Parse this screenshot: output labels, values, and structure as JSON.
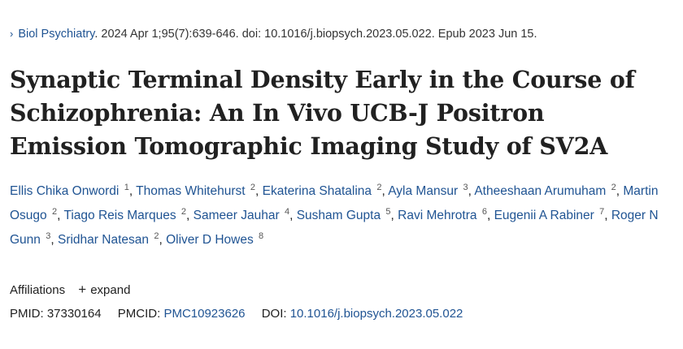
{
  "citation": {
    "arrow": "›",
    "journal": "Biol Psychiatry",
    "details": ". 2024 Apr 1;95(7):639-646. doi: 10.1016/j.biopsych.2023.05.022. Epub 2023 Jun 15."
  },
  "title": "Synaptic Terminal Density Early in the Course of Schizophrenia: An In Vivo UCB-J Positron Emission Tomographic Imaging Study of SV2A",
  "authors": [
    {
      "name": "Ellis Chika Onwordi",
      "sup": "1"
    },
    {
      "name": "Thomas Whitehurst",
      "sup": "2"
    },
    {
      "name": "Ekaterina Shatalina",
      "sup": "2"
    },
    {
      "name": "Ayla Mansur",
      "sup": "3"
    },
    {
      "name": "Atheeshaan Arumuham",
      "sup": "2"
    },
    {
      "name": "Martin Osugo",
      "sup": "2"
    },
    {
      "name": "Tiago Reis Marques",
      "sup": "2"
    },
    {
      "name": "Sameer Jauhar",
      "sup": "4"
    },
    {
      "name": "Susham Gupta",
      "sup": "5"
    },
    {
      "name": "Ravi Mehrotra",
      "sup": "6"
    },
    {
      "name": "Eugenii A Rabiner",
      "sup": "7"
    },
    {
      "name": "Roger N Gunn",
      "sup": "3"
    },
    {
      "name": "Sridhar Natesan",
      "sup": "2"
    },
    {
      "name": "Oliver D Howes",
      "sup": "8"
    }
  ],
  "affiliations": {
    "label": "Affiliations",
    "toggle_icon": "+",
    "toggle_label": "expand"
  },
  "ids": {
    "pmid_label": "PMID:",
    "pmid": "37330164",
    "pmcid_label": "PMCID:",
    "pmcid": "PMC10923626",
    "doi_label": "DOI:",
    "doi": "10.1016/j.biopsych.2023.05.022"
  },
  "colors": {
    "link": "#205493",
    "text": "#212121"
  }
}
